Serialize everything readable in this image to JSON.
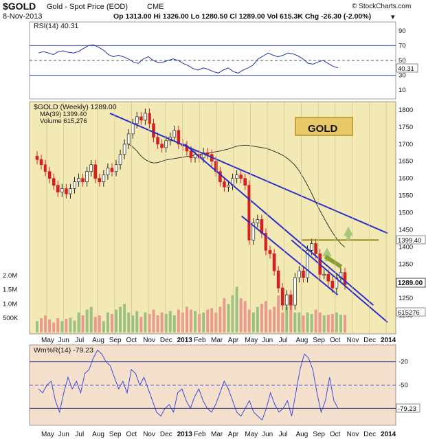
{
  "header": {
    "symbol": "$GOLD",
    "name": "Gold - Spot Price (EOD)",
    "exchange": "CME",
    "date": "8-Nov-2013",
    "ohlc": "Op 1313.00  Hi 1326.00  Lo 1280.50  Cl 1289.00  Vol 615.3K  Chg -26.30 (-2.00%)",
    "arrow": "▾",
    "copyright": "© StockCharts.com"
  },
  "chart_data": [
    {
      "type": "line",
      "title": "RSI(14) 40.31",
      "indicator": "RSI",
      "period": 14,
      "last": 40.31,
      "last_label": "40.31",
      "ylim": [
        0,
        100
      ],
      "yticks": [
        10,
        30,
        50,
        70,
        90
      ],
      "reference_lines": [
        30,
        50,
        70
      ],
      "series": [
        {
          "values": [
            60,
            62,
            60,
            58,
            62,
            63,
            61,
            60,
            62,
            66,
            70,
            71,
            68,
            64,
            58,
            55,
            57,
            55,
            52,
            48,
            46,
            52,
            55,
            50,
            47,
            48,
            50,
            52,
            50,
            46,
            43,
            39,
            37,
            40,
            38,
            35,
            33,
            37,
            40,
            35,
            33,
            37,
            40,
            44,
            52,
            56,
            60,
            57,
            55,
            57,
            60,
            59,
            56,
            52,
            46,
            45,
            48,
            50,
            46,
            42,
            40
          ]
        }
      ],
      "color": "#2030b0"
    },
    {
      "type": "candlestick",
      "title": "$GOLD (Weekly) 1289.00",
      "ylim": [
        1150,
        1820
      ],
      "yticks": [
        1200,
        1250,
        1300,
        1350,
        1400,
        1450,
        1500,
        1550,
        1600,
        1650,
        1700,
        1750,
        1800
      ],
      "x_ticks": [
        "May",
        "Jun",
        "Jul",
        "Aug",
        "Sep",
        "Oct",
        "Nov",
        "Dec",
        "2013",
        "Feb",
        "Mar",
        "Apr",
        "May",
        "Jun",
        "Jul",
        "Aug",
        "Sep",
        "Oct",
        "Nov",
        "Dec",
        "2014"
      ],
      "last_price": 1289.0,
      "last_label": "1289.00",
      "closes": [
        1655,
        1640,
        1620,
        1600,
        1580,
        1560,
        1570,
        1555,
        1570,
        1590,
        1600,
        1590,
        1620,
        1640,
        1600,
        1590,
        1610,
        1630,
        1620,
        1640,
        1670,
        1700,
        1730,
        1760,
        1780,
        1770,
        1790,
        1760,
        1720,
        1700,
        1690,
        1710,
        1720,
        1740,
        1700,
        1695,
        1680,
        1660,
        1670,
        1660,
        1675,
        1670,
        1650,
        1620,
        1590,
        1575,
        1580,
        1600,
        1610,
        1600,
        1580,
        1420,
        1470,
        1480,
        1440,
        1390,
        1380,
        1330,
        1280,
        1230,
        1260,
        1230,
        1310,
        1330,
        1310,
        1390,
        1410,
        1380,
        1320,
        1320,
        1300,
        1280,
        1310,
        1325,
        1289
      ],
      "legend": [
        {
          "name": "MA(39) 1399.40",
          "color": "#222222"
        },
        {
          "name": "Volume 615,276",
          "color": "#2e8b2e"
        }
      ],
      "moving_average": {
        "period": 39,
        "last": 1399.4,
        "last_label": "1399.40",
        "values": [
          1700,
          1692,
          1680,
          1665,
          1655,
          1648,
          1645,
          1646,
          1650,
          1654,
          1656,
          1658,
          1660,
          1662,
          1664,
          1666,
          1668,
          1670,
          1672,
          1674,
          1676,
          1678,
          1680,
          1683,
          1686,
          1690,
          1694,
          1696,
          1697,
          1696,
          1694,
          1692,
          1690,
          1688,
          1684,
          1679,
          1674,
          1668,
          1660,
          1650,
          1638,
          1622,
          1602,
          1580,
          1556,
          1530,
          1506,
          1484,
          1462,
          1442,
          1424,
          1410,
          1399
        ]
      },
      "volume": {
        "unit": "shares",
        "ticks": [
          "500K",
          "1.0M",
          "1.5M",
          "2.0M"
        ],
        "tick_values": [
          500000,
          1000000,
          1500000,
          2000000
        ],
        "max": 2500000,
        "last": 615276,
        "last_label": "615276",
        "values": [
          400000,
          500000,
          600000,
          450000,
          350000,
          500000,
          400000,
          480000,
          520000,
          420000,
          700000,
          600000,
          800000,
          900000,
          550000,
          600000,
          400000,
          700000,
          650000,
          800000,
          900000,
          1000000,
          700000,
          600000,
          750000,
          550000,
          700000,
          650000,
          800000,
          600000,
          700000,
          650000,
          750000,
          600000,
          800000,
          700000,
          900000,
          800000,
          750000,
          650000,
          700000,
          800000,
          850000,
          700000,
          900000,
          1200000,
          1000000,
          1300000,
          1600000,
          1200000,
          1100000,
          800000,
          700000,
          900000,
          1000000,
          1100000,
          800000,
          900000,
          1300000,
          700000,
          900000,
          1100000,
          700000,
          700000,
          600000,
          700000,
          650000,
          800000,
          700000,
          600000,
          620000,
          650000,
          700000,
          620000,
          615276
        ]
      },
      "annotation_label": "GOLD",
      "trendlines": [
        {
          "from": [
            0.22,
            1790
          ],
          "to": [
            1.0,
            1440
          ],
          "color": "#2a2fc8"
        },
        {
          "from": [
            0.43,
            1700
          ],
          "to": [
            0.96,
            1230
          ],
          "color": "#2a2fc8"
        },
        {
          "from": [
            0.59,
            1490
          ],
          "to": [
            0.86,
            1260
          ],
          "color": "#2a2fc8"
        },
        {
          "from": [
            0.73,
            1420
          ],
          "to": [
            1.0,
            1180
          ],
          "color": "#2a2fc8"
        }
      ],
      "horizontal_line": {
        "price": 1420,
        "color": "#8a8a10"
      },
      "accent_colors": {
        "panel_bg": "#f3e9b4",
        "up_candle": "#ffffff",
        "down_candle": "#d42020",
        "volume_up": "#8bb87a",
        "volume_down": "#e88a8a",
        "arrow_up": "#a9c97a",
        "arrow_fill": "#8a9e36"
      }
    },
    {
      "type": "line",
      "title": "Wm%R(14) -79.23",
      "indicator": "Williams %R",
      "period": 14,
      "last": -79.23,
      "last_label": "-79.23",
      "ylim": [
        -100,
        0
      ],
      "yticks": [
        -20,
        -50,
        -80
      ],
      "reference_lines": [
        -20,
        -50,
        -80
      ],
      "series": [
        {
          "values": [
            -55,
            -60,
            -50,
            -45,
            -70,
            -85,
            -60,
            -40,
            -55,
            -45,
            -60,
            -35,
            -30,
            -15,
            -5,
            -10,
            -20,
            -25,
            -40,
            -55,
            -45,
            -60,
            -30,
            -35,
            -50,
            -40,
            -55,
            -70,
            -85,
            -90,
            -80,
            -75,
            -85,
            -60,
            -55,
            -70,
            -80,
            -65,
            -55,
            -70,
            -80,
            -85,
            -75,
            -60,
            -45,
            -55,
            -70,
            -85,
            -90,
            -80,
            -70,
            -85,
            -90,
            -95,
            -80,
            -60,
            -75,
            -85,
            -80,
            -70,
            -90,
            -60,
            -30,
            -10,
            -15,
            -30,
            -60,
            -85,
            -70,
            -40,
            -70,
            -80
          ]
        }
      ],
      "color": "#3a4ad8"
    }
  ],
  "x_axis": {
    "labels": [
      "May",
      "Jun",
      "Jul",
      "Aug",
      "Sep",
      "Oct",
      "Nov",
      "Dec",
      "2013",
      "Feb",
      "Mar",
      "Apr",
      "May",
      "Jun",
      "Jul",
      "Aug",
      "Sep",
      "Oct",
      "Nov",
      "Dec",
      "2014"
    ],
    "bold": [
      "2013",
      "2014"
    ]
  }
}
